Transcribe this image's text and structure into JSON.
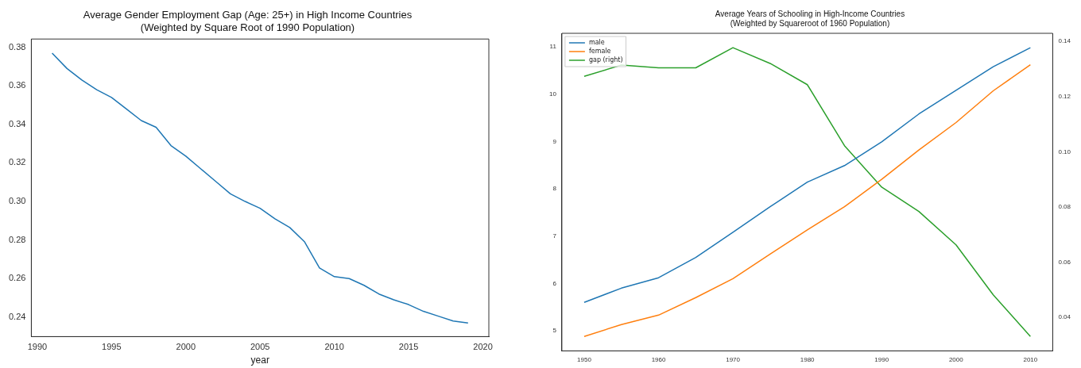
{
  "chart_data": [
    {
      "type": "line",
      "title": "Average Gender Employment Gap (Age: 25+) in High Income Countries\n(Weighted by Square Root of 1990 Population)",
      "xlabel": "year",
      "x": [
        1991,
        1992,
        1993,
        1994,
        1995,
        1996,
        1997,
        1998,
        1999,
        2000,
        2001,
        2002,
        2003,
        2004,
        2005,
        2006,
        2007,
        2008,
        2009,
        2010,
        2011,
        2012,
        2013,
        2014,
        2015,
        2016,
        2017,
        2018,
        2019
      ],
      "series": [
        {
          "color": "#1f77b4",
          "values": [
            0.377,
            0.369,
            0.363,
            0.358,
            0.354,
            0.348,
            0.342,
            0.3385,
            0.329,
            0.3235,
            0.317,
            0.3105,
            0.304,
            0.3,
            0.2965,
            0.291,
            0.2865,
            0.279,
            0.2655,
            0.261,
            0.26,
            0.2565,
            0.252,
            0.249,
            0.2465,
            0.243,
            0.2405,
            0.238,
            0.237
          ]
        }
      ],
      "xlim": [
        1989.6,
        2020.4
      ],
      "xticks": [
        1990,
        1995,
        2000,
        2005,
        2010,
        2015,
        2020
      ],
      "ylim": [
        0.2299,
        0.3843
      ],
      "yticks": [
        {
          "value": 0.24,
          "label": "0.24"
        },
        {
          "value": 0.26,
          "label": "0.26"
        },
        {
          "value": 0.28,
          "label": "0.28"
        },
        {
          "value": 0.3,
          "label": "0.30"
        },
        {
          "value": 0.32,
          "label": "0.32"
        },
        {
          "value": 0.34,
          "label": "0.34"
        },
        {
          "value": 0.36,
          "label": "0.36"
        },
        {
          "value": 0.38,
          "label": "0.38"
        }
      ],
      "grid": false,
      "legend": false
    },
    {
      "type": "line",
      "title": "Average Years of Schooling in High-Income Countries\n(Weighted by Squareroot of 1960 Population)",
      "x": [
        1950,
        1955,
        1960,
        1965,
        1970,
        1975,
        1980,
        1985,
        1990,
        1995,
        2000,
        2005,
        2010
      ],
      "series": [
        {
          "name": "male",
          "color": "#1f77b4",
          "values": [
            5.6,
            5.9,
            6.12,
            6.55,
            7.08,
            7.62,
            8.14,
            8.49,
            8.99,
            9.58,
            10.08,
            10.58,
            10.98
          ]
        },
        {
          "name": "female",
          "color": "#ff7f0e",
          "values": [
            4.88,
            5.13,
            5.33,
            5.7,
            6.1,
            6.62,
            7.13,
            7.62,
            8.2,
            8.82,
            9.4,
            10.07,
            10.62
          ]
        },
        {
          "name": "gap (right)",
          "color": "#2ca02c",
          "axis": "y2",
          "values": [
            0.1273,
            0.1314,
            0.1304,
            0.1304,
            0.1377,
            0.132,
            0.1243,
            0.1022,
            0.0872,
            0.0784,
            0.0663,
            0.0482,
            0.0331
          ]
        }
      ],
      "xlim": [
        1947,
        2013
      ],
      "xticks": [
        1950,
        1960,
        1970,
        1980,
        1990,
        2000,
        2010
      ],
      "ylim": [
        4.575,
        11.285
      ],
      "yticks": [
        5,
        6,
        7,
        8,
        9,
        10,
        11
      ],
      "y2lim": [
        0.0279,
        0.1429
      ],
      "y2ticks": [
        {
          "value": 0.04,
          "label": "0.04"
        },
        {
          "value": 0.06,
          "label": "0.06"
        },
        {
          "value": 0.08,
          "label": "0.08"
        },
        {
          "value": 0.1,
          "label": "0.10"
        },
        {
          "value": 0.12,
          "label": "0.12"
        },
        {
          "value": 0.14,
          "label": "0.14"
        }
      ],
      "grid": false,
      "legend": "top left"
    }
  ]
}
